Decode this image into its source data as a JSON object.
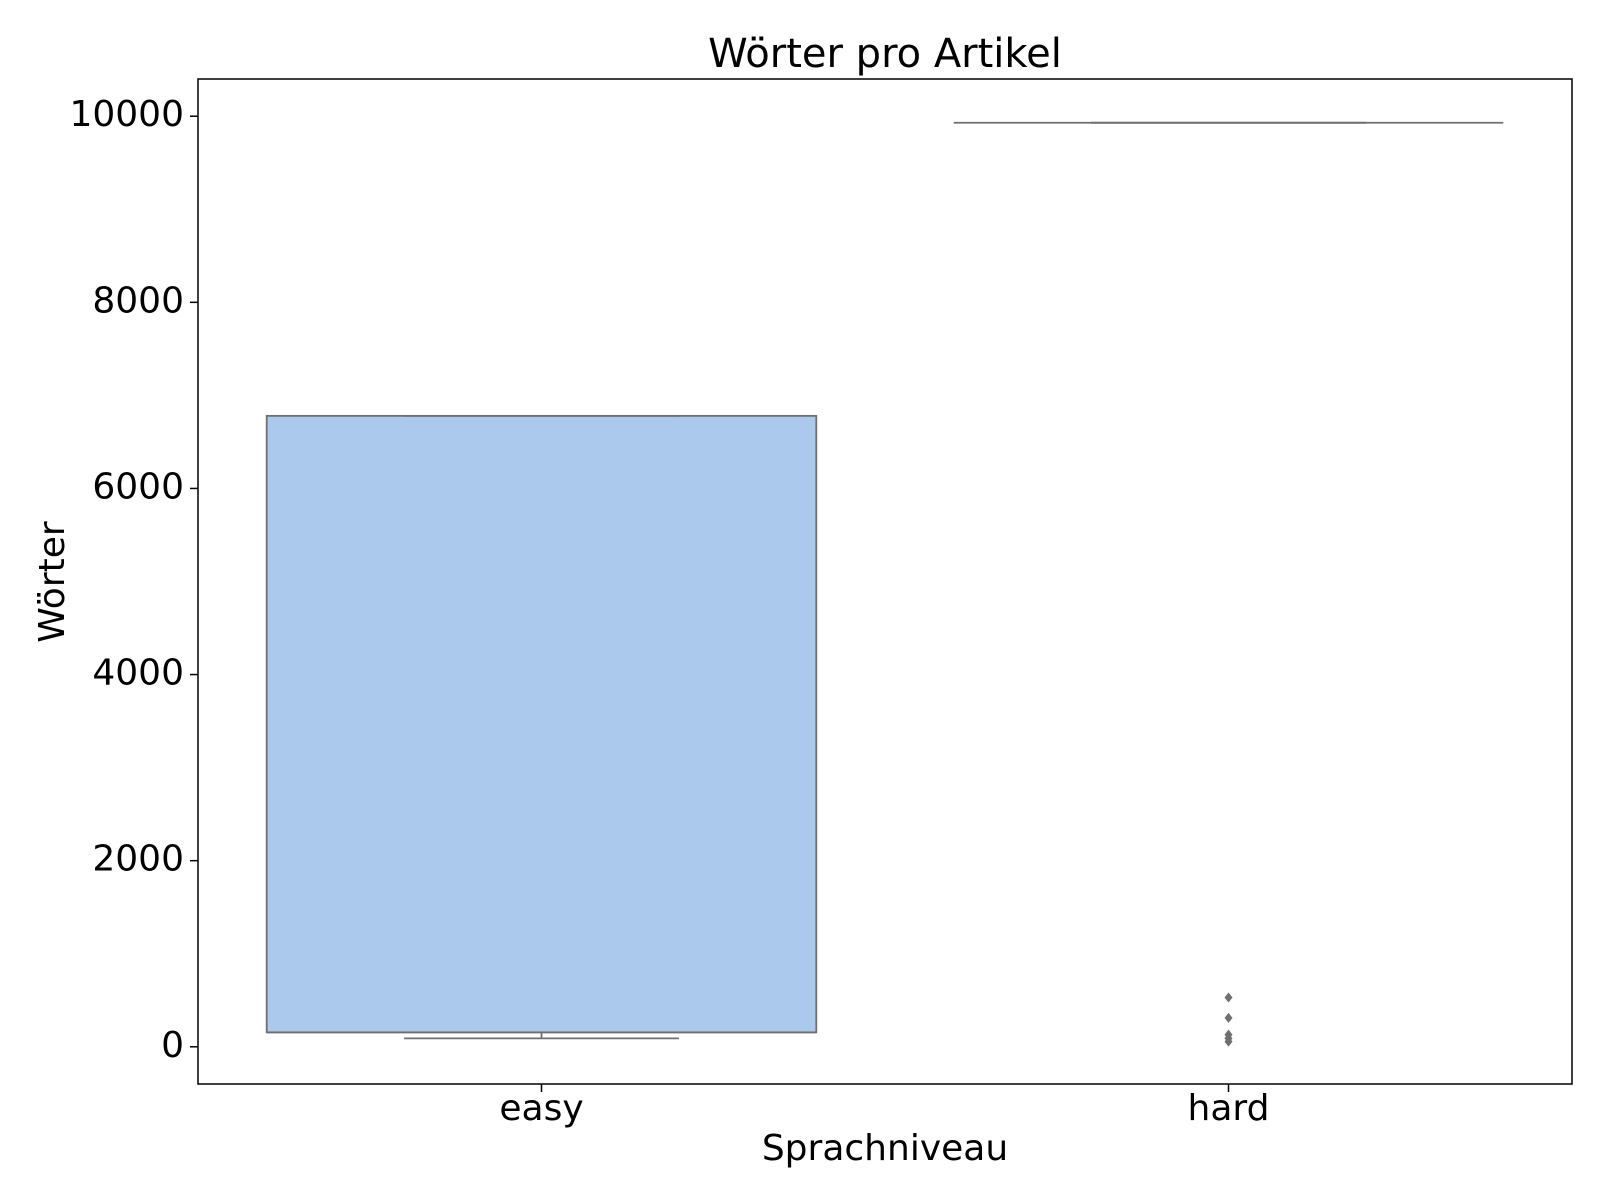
{
  "chart_data": {
    "type": "box",
    "title": "Wörter pro Artikel",
    "x_label": "Sprachniveau",
    "y_label": "Wörter",
    "categories": [
      "easy",
      "hard"
    ],
    "colors": [
      "#abc9ec",
      "#f5c99e"
    ],
    "boxes": [
      {
        "min": 90,
        "q1": 155,
        "median": 155,
        "q3": 6780,
        "max": 6780,
        "outliers": []
      },
      {
        "min": 9930,
        "q1": 9930,
        "median": 9930,
        "q3": 9930,
        "max": 9930,
        "outliers": [
          530,
          310,
          130,
          90,
          55
        ]
      }
    ],
    "ylim": [
      -400,
      10400
    ],
    "yticks": [
      0,
      2000,
      4000,
      6000,
      8000,
      10000
    ],
    "grid": false
  }
}
